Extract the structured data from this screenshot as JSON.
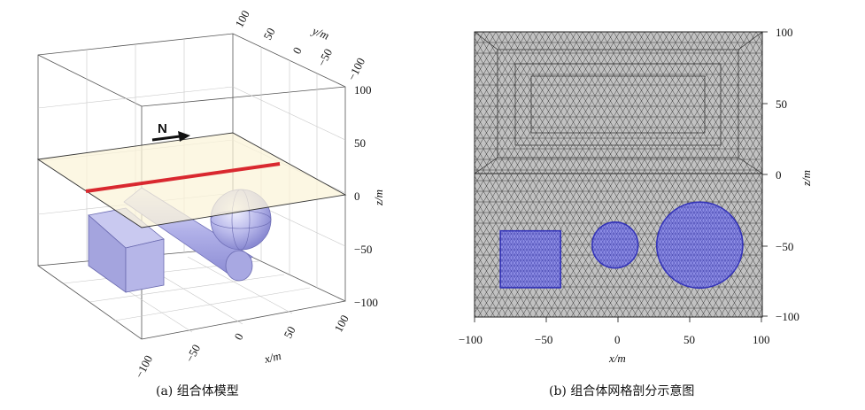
{
  "panel_a": {
    "caption": "(a) 组合体模型",
    "north_label": "N",
    "y_axis": {
      "label": "y/m",
      "ticks": [
        "100",
        "50",
        "0",
        "−50",
        "−100"
      ]
    },
    "z_axis": {
      "label": "z/m",
      "ticks": [
        "100",
        "50",
        "0",
        "−50",
        "−100"
      ]
    },
    "x_axis": {
      "label": "x/m",
      "ticks": [
        "−100",
        "−50",
        "0",
        "50",
        "100"
      ]
    }
  },
  "panel_b": {
    "caption": "(b) 组合体网格剖分示意图",
    "x_axis": {
      "label": "x/m",
      "ticks": [
        "−100",
        "−50",
        "0",
        "50",
        "100"
      ],
      "range": [
        -100,
        100
      ]
    },
    "z_axis": {
      "label": "z/m",
      "ticks": [
        "100",
        "50",
        "0",
        "−50",
        "−100"
      ],
      "range": [
        -100,
        100
      ]
    },
    "mesh_color": "#9a9a9a",
    "body_color": "#6f6fd6",
    "bodies": [
      {
        "shape": "square",
        "x_range": [
          -82,
          -40
        ],
        "z_range": [
          -80,
          -40
        ]
      },
      {
        "shape": "circle",
        "center_x": -2,
        "center_z": -50,
        "radius": 16
      },
      {
        "shape": "circle",
        "center_x": 57,
        "center_z": -50,
        "radius": 30
      }
    ]
  },
  "colors": {
    "plane": "#fbf4d8",
    "profile_line": "#d9282f",
    "solid": "#aeaee6"
  }
}
